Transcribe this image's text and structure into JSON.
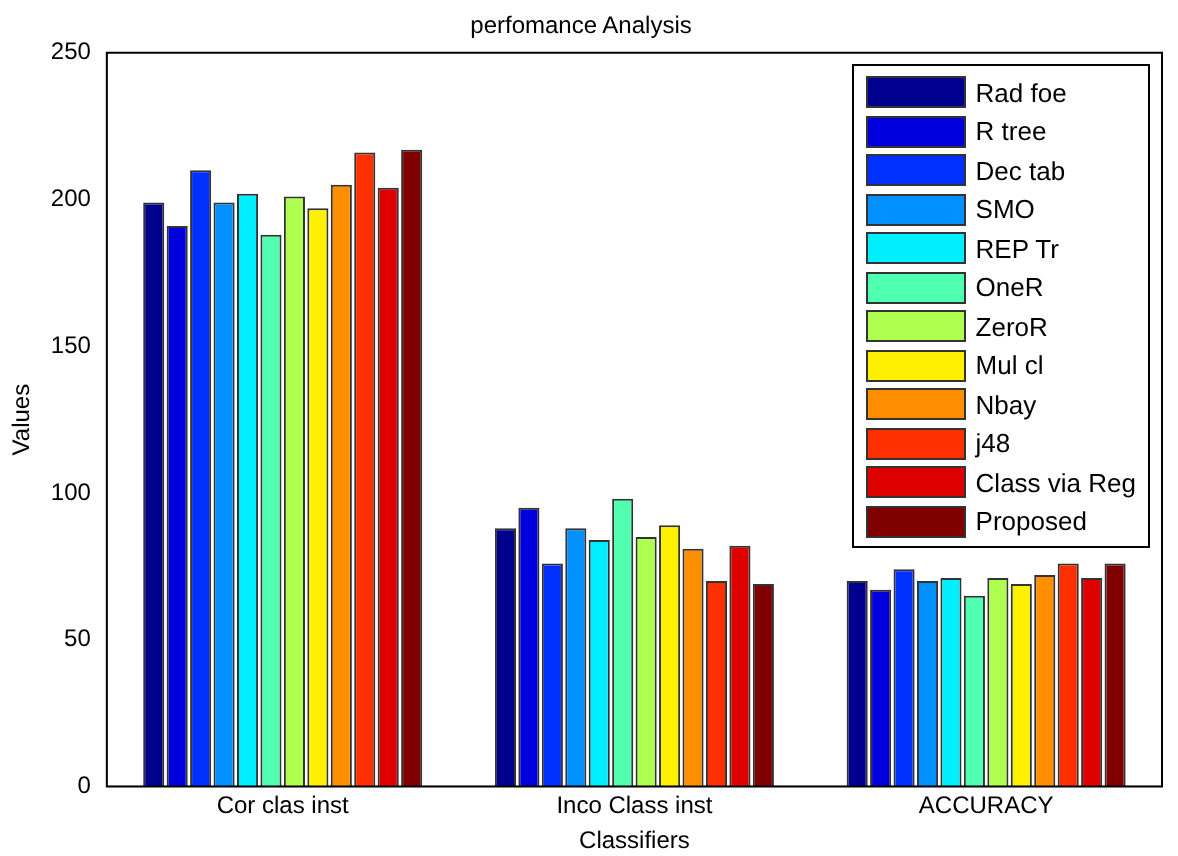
{
  "chart_data": {
    "type": "bar",
    "title": "perfomance Analysis",
    "xlabel": "Classifiers",
    "ylabel": "Values",
    "categories": [
      "Cor clas inst",
      "Inco Class inst",
      "ACCURACY"
    ],
    "ylim": [
      0,
      250
    ],
    "yticks": [
      0,
      50,
      100,
      150,
      200,
      250
    ],
    "grid": false,
    "legend": "top right",
    "series": [
      {
        "name": "Rad foe",
        "color": "#00008f",
        "values": [
          199,
          88,
          70
        ]
      },
      {
        "name": "R tree",
        "color": "#0000df",
        "values": [
          191,
          95,
          67
        ]
      },
      {
        "name": "Dec tab",
        "color": "#0030ff",
        "values": [
          210,
          76,
          74
        ]
      },
      {
        "name": "SMO",
        "color": "#0090ff",
        "values": [
          199,
          88,
          70
        ]
      },
      {
        "name": "REP Tr",
        "color": "#00efff",
        "values": [
          202,
          84,
          71
        ]
      },
      {
        "name": "OneR",
        "color": "#50ffaf",
        "values": [
          188,
          98,
          65
        ]
      },
      {
        "name": "ZeroR",
        "color": "#afff50",
        "values": [
          201,
          85,
          71
        ]
      },
      {
        "name": "Mul cl",
        "color": "#ffef00",
        "values": [
          197,
          89,
          69
        ]
      },
      {
        "name": "Nbay",
        "color": "#ff8f00",
        "values": [
          205,
          81,
          72
        ]
      },
      {
        "name": "j48",
        "color": "#ff3000",
        "values": [
          216,
          70,
          76
        ]
      },
      {
        "name": "Class via Reg",
        "color": "#df0000",
        "values": [
          204,
          82,
          71
        ]
      },
      {
        "name": "Proposed",
        "color": "#800000",
        "values": [
          217,
          69,
          76
        ]
      }
    ]
  }
}
